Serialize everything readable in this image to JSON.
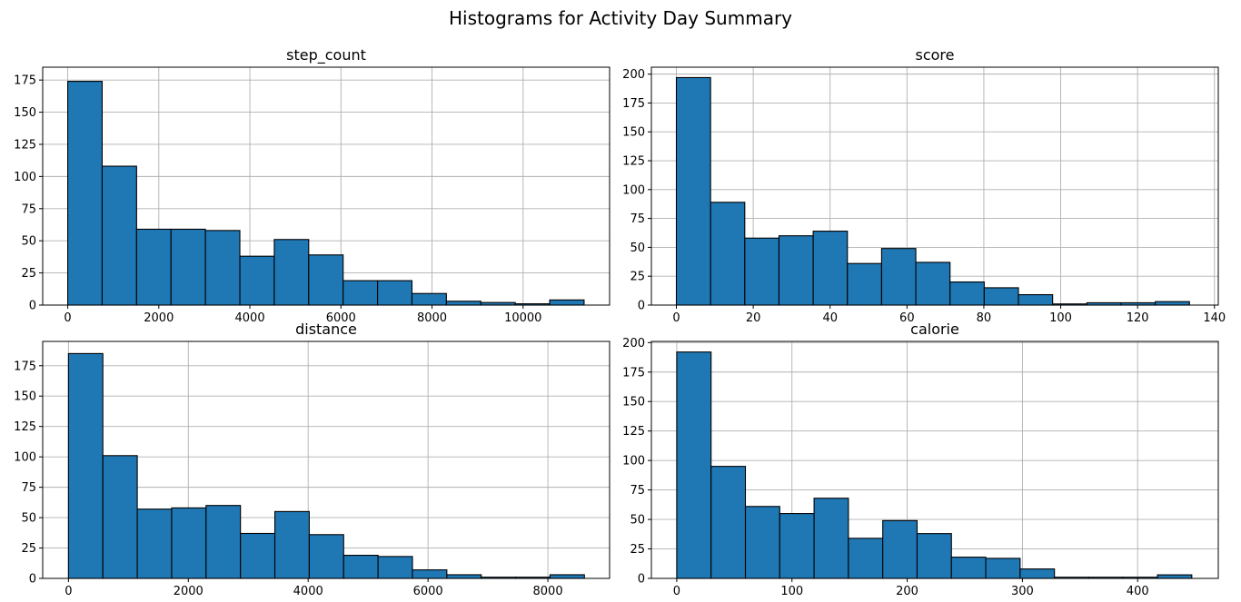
{
  "figure": {
    "suptitle": "Histograms for Activity Day Summary",
    "bar_color": "#1f77b4",
    "edge_color": "#000000",
    "grid_color": "#b0b0b0"
  },
  "chart_data": [
    {
      "type": "bar",
      "title": "step_count",
      "xlim": [
        -550,
        11900
      ],
      "ylim": [
        0,
        185
      ],
      "xticks": [
        0,
        2000,
        4000,
        6000,
        8000,
        10000
      ],
      "yticks": [
        0,
        25,
        50,
        75,
        100,
        125,
        150,
        175
      ],
      "grid": true,
      "bins": [
        {
          "x0": 0,
          "x1": 756,
          "count": 174
        },
        {
          "x0": 756,
          "x1": 1512,
          "count": 108
        },
        {
          "x0": 1512,
          "x1": 2268,
          "count": 59
        },
        {
          "x0": 2268,
          "x1": 3024,
          "count": 59
        },
        {
          "x0": 3024,
          "x1": 3780,
          "count": 58
        },
        {
          "x0": 3780,
          "x1": 4536,
          "count": 38
        },
        {
          "x0": 4536,
          "x1": 5292,
          "count": 51
        },
        {
          "x0": 5292,
          "x1": 6048,
          "count": 39
        },
        {
          "x0": 6048,
          "x1": 6804,
          "count": 19
        },
        {
          "x0": 6804,
          "x1": 7560,
          "count": 19
        },
        {
          "x0": 7560,
          "x1": 8316,
          "count": 9
        },
        {
          "x0": 8316,
          "x1": 9072,
          "count": 3
        },
        {
          "x0": 9072,
          "x1": 9828,
          "count": 2
        },
        {
          "x0": 9828,
          "x1": 10584,
          "count": 1
        },
        {
          "x0": 10584,
          "x1": 11340,
          "count": 4
        }
      ]
    },
    {
      "type": "bar",
      "title": "score",
      "xlim": [
        -6.5,
        141
      ],
      "ylim": [
        0,
        206
      ],
      "xticks": [
        0,
        20,
        40,
        60,
        80,
        100,
        120,
        140
      ],
      "yticks": [
        0,
        25,
        50,
        75,
        100,
        125,
        150,
        175,
        200
      ],
      "grid": true,
      "bins": [
        {
          "x0": 0,
          "x1": 8.9,
          "count": 197
        },
        {
          "x0": 8.9,
          "x1": 17.8,
          "count": 89
        },
        {
          "x0": 17.8,
          "x1": 26.7,
          "count": 58
        },
        {
          "x0": 26.7,
          "x1": 35.6,
          "count": 60
        },
        {
          "x0": 35.6,
          "x1": 44.5,
          "count": 64
        },
        {
          "x0": 44.5,
          "x1": 53.4,
          "count": 36
        },
        {
          "x0": 53.4,
          "x1": 62.3,
          "count": 49
        },
        {
          "x0": 62.3,
          "x1": 71.2,
          "count": 37
        },
        {
          "x0": 71.2,
          "x1": 80.1,
          "count": 20
        },
        {
          "x0": 80.1,
          "x1": 89.0,
          "count": 15
        },
        {
          "x0": 89.0,
          "x1": 97.9,
          "count": 9
        },
        {
          "x0": 97.9,
          "x1": 106.8,
          "count": 1
        },
        {
          "x0": 106.8,
          "x1": 115.7,
          "count": 2
        },
        {
          "x0": 115.7,
          "x1": 124.6,
          "count": 2
        },
        {
          "x0": 124.6,
          "x1": 133.5,
          "count": 3
        }
      ]
    },
    {
      "type": "bar",
      "title": "distance",
      "xlim": [
        -430,
        9030
      ],
      "ylim": [
        0,
        195
      ],
      "xticks": [
        0,
        2000,
        4000,
        6000,
        8000
      ],
      "yticks": [
        0,
        25,
        50,
        75,
        100,
        125,
        150,
        175
      ],
      "grid": true,
      "bins": [
        {
          "x0": 0,
          "x1": 574,
          "count": 185
        },
        {
          "x0": 574,
          "x1": 1148,
          "count": 101
        },
        {
          "x0": 1148,
          "x1": 1722,
          "count": 57
        },
        {
          "x0": 1722,
          "x1": 2296,
          "count": 58
        },
        {
          "x0": 2296,
          "x1": 2870,
          "count": 60
        },
        {
          "x0": 2870,
          "x1": 3444,
          "count": 37
        },
        {
          "x0": 3444,
          "x1": 4018,
          "count": 55
        },
        {
          "x0": 4018,
          "x1": 4592,
          "count": 36
        },
        {
          "x0": 4592,
          "x1": 5166,
          "count": 19
        },
        {
          "x0": 5166,
          "x1": 5740,
          "count": 18
        },
        {
          "x0": 5740,
          "x1": 6314,
          "count": 7
        },
        {
          "x0": 6314,
          "x1": 6888,
          "count": 3
        },
        {
          "x0": 6888,
          "x1": 7462,
          "count": 1
        },
        {
          "x0": 7462,
          "x1": 8036,
          "count": 1
        },
        {
          "x0": 8036,
          "x1": 8610,
          "count": 3
        }
      ]
    },
    {
      "type": "bar",
      "title": "calorie",
      "xlim": [
        -22,
        470
      ],
      "ylim": [
        0,
        201
      ],
      "xticks": [
        0,
        100,
        200,
        300,
        400
      ],
      "yticks": [
        0,
        25,
        50,
        75,
        100,
        125,
        150,
        175,
        200
      ],
      "grid": true,
      "bins": [
        {
          "x0": 0,
          "x1": 29.8,
          "count": 192
        },
        {
          "x0": 29.8,
          "x1": 59.6,
          "count": 95
        },
        {
          "x0": 59.6,
          "x1": 89.4,
          "count": 61
        },
        {
          "x0": 89.4,
          "x1": 119.2,
          "count": 55
        },
        {
          "x0": 119.2,
          "x1": 149.0,
          "count": 68
        },
        {
          "x0": 149.0,
          "x1": 178.8,
          "count": 34
        },
        {
          "x0": 178.8,
          "x1": 208.6,
          "count": 49
        },
        {
          "x0": 208.6,
          "x1": 238.4,
          "count": 38
        },
        {
          "x0": 238.4,
          "x1": 268.2,
          "count": 18
        },
        {
          "x0": 268.2,
          "x1": 298.0,
          "count": 17
        },
        {
          "x0": 298.0,
          "x1": 327.8,
          "count": 8
        },
        {
          "x0": 327.8,
          "x1": 357.6,
          "count": 1
        },
        {
          "x0": 357.6,
          "x1": 387.4,
          "count": 1
        },
        {
          "x0": 387.4,
          "x1": 417.2,
          "count": 1
        },
        {
          "x0": 417.2,
          "x1": 447.0,
          "count": 3
        }
      ]
    }
  ]
}
